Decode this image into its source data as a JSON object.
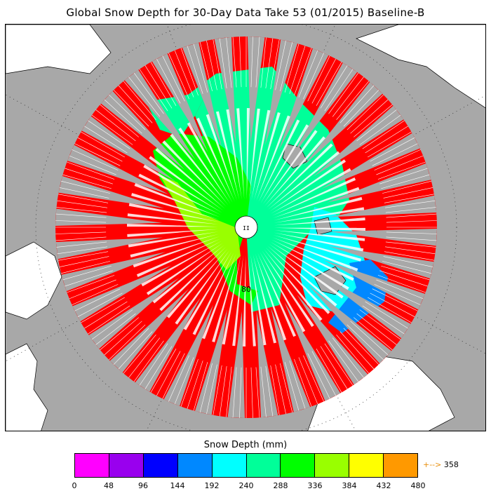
{
  "title": "Global Snow Depth for 30-Day Data Take 53 (01/2015) Baseline-B",
  "map": {
    "projection": "north-polar-stereographic",
    "latitude_label": "80",
    "land_color": "#ffffff",
    "ocean_color": "#a8a8a8",
    "no_data_color": "#ff0000"
  },
  "legend": {
    "title": "Snow Depth (mm)",
    "ticks": [
      "0",
      "48",
      "96",
      "144",
      "192",
      "240",
      "288",
      "336",
      "384",
      "432",
      "480"
    ],
    "colors": [
      "#ff00ff",
      "#9900ee",
      "#0000ff",
      "#0088ff",
      "#00ffff",
      "#00ff99",
      "#00ff00",
      "#99ff00",
      "#ffff00",
      "#ff9900"
    ],
    "max_label": "358",
    "max_arrow": "+-->",
    "max_arrow_color": "#e89010"
  },
  "chart_data": {
    "type": "heatmap",
    "title": "Global Snow Depth for 30-Day Data Take 53 (01/2015) Baseline-B",
    "colorbar_label": "Snow Depth (mm)",
    "range": [
      0,
      480
    ],
    "bins": [
      0,
      48,
      96,
      144,
      192,
      240,
      288,
      336,
      384,
      432,
      480
    ],
    "max_value": 358
  }
}
